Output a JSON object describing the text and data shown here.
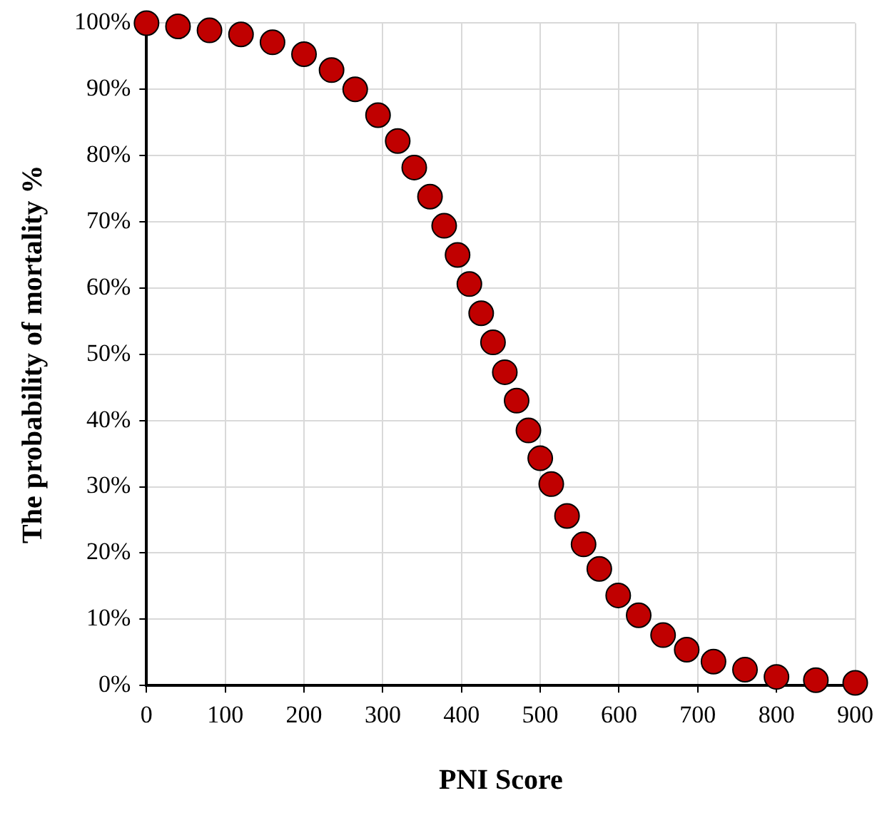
{
  "chart_data": {
    "type": "scatter",
    "xlabel": "PNI Score",
    "ylabel": "The probability of mortality %",
    "x": [
      0,
      40,
      80,
      120,
      160,
      200,
      235,
      265,
      294,
      319,
      340,
      360,
      378,
      395,
      410,
      425,
      440,
      455,
      470,
      485,
      500,
      514,
      534,
      555,
      575,
      599,
      625,
      656,
      686,
      720,
      760,
      800,
      850,
      900
    ],
    "series": [
      {
        "color": "#c00000",
        "values": [
          100,
          99.5,
          98.9,
          98.3,
          97.1,
          95.3,
          92.9,
          90.0,
          86.1,
          82.2,
          78.2,
          73.8,
          69.4,
          65.0,
          60.6,
          56.2,
          51.8,
          47.3,
          43.0,
          38.5,
          34.3,
          30.4,
          25.6,
          21.3,
          17.6,
          13.6,
          10.6,
          7.6,
          5.4,
          3.6,
          2.4,
          1.3,
          0.8,
          0.4
        ]
      }
    ],
    "xlim": [
      0,
      900
    ],
    "xticks": [
      0,
      100,
      200,
      300,
      400,
      500,
      600,
      700,
      800,
      900
    ],
    "ylim": [
      0,
      100
    ],
    "yticks": [
      {
        "value": 0,
        "label": "0%"
      },
      {
        "value": 10,
        "label": "10%"
      },
      {
        "value": 20,
        "label": "20%"
      },
      {
        "value": 30,
        "label": "30%"
      },
      {
        "value": 40,
        "label": "40%"
      },
      {
        "value": 50,
        "label": "50%"
      },
      {
        "value": 60,
        "label": "60%"
      },
      {
        "value": 70,
        "label": "70%"
      },
      {
        "value": 80,
        "label": "80%"
      },
      {
        "value": 90,
        "label": "90%"
      },
      {
        "value": 100,
        "label": "100%"
      }
    ],
    "grid": true,
    "marker": "circle",
    "legend": false
  }
}
